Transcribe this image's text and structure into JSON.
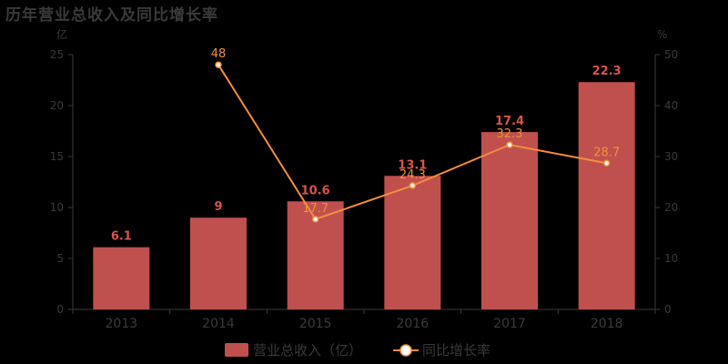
{
  "chart_data": {
    "type": "bar",
    "title": "历年营业总收入及同比增长率",
    "categories": [
      "2013",
      "2014",
      "2015",
      "2016",
      "2017",
      "2018"
    ],
    "y_left_unit": "亿",
    "y_right_unit": "%",
    "y_left_ticks": [
      "0",
      "5",
      "10",
      "15",
      "20",
      "25"
    ],
    "y_right_ticks": [
      "0",
      "10",
      "20",
      "30",
      "40",
      "50"
    ],
    "ylim_left": [
      0,
      25
    ],
    "ylim_right": [
      0,
      50
    ],
    "series": [
      {
        "name": "营业总收入（亿）",
        "type": "bar",
        "axis": "left",
        "values": [
          6.1,
          9,
          10.6,
          13.1,
          17.4,
          22.3
        ],
        "labels": [
          "6.1",
          "9",
          "10.6",
          "13.1",
          "17.4",
          "22.3"
        ]
      },
      {
        "name": "同比增长率",
        "type": "line",
        "axis": "right",
        "values": [
          null,
          48,
          17.7,
          24.3,
          32.3,
          28.7
        ],
        "labels": [
          "",
          "48",
          "17.7",
          "24.3",
          "32.3",
          "28.7"
        ]
      }
    ],
    "legend_position": "bottom-center",
    "grid": false
  },
  "colors": {
    "bar": "#c0504d",
    "bar_label": "#d9534f",
    "line": "#f28e3c",
    "line_label": "#f28e3c",
    "marker_fill": "#ffffff"
  }
}
